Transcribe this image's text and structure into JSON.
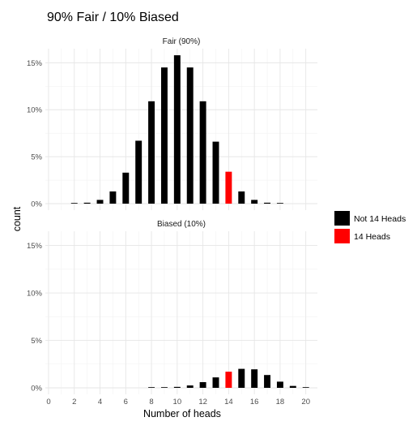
{
  "chart_data": {
    "type": "bar",
    "title": "90% Fair / 10% Biased",
    "xlabel": "Number of heads",
    "ylabel": "count",
    "x_ticks": [
      0,
      2,
      4,
      6,
      8,
      10,
      12,
      14,
      16,
      18,
      20
    ],
    "x_tick_labels": [
      "0",
      "2",
      "4",
      "6",
      "8",
      "10",
      "12",
      "14",
      "16",
      "18",
      "20"
    ],
    "xlim": [
      0,
      20
    ],
    "ylim": [
      0,
      16.5
    ],
    "y_ticks": [
      0,
      5,
      10,
      15
    ],
    "y_tick_labels": [
      "0%",
      "5%",
      "10%",
      "15%"
    ],
    "grid": true,
    "legend": {
      "position": "right",
      "entries": [
        {
          "label": "Not 14 Heads",
          "color": "#000000"
        },
        {
          "label": "14 Heads",
          "color": "#ff0000"
        }
      ]
    },
    "x": [
      0,
      1,
      2,
      3,
      4,
      5,
      6,
      7,
      8,
      9,
      10,
      11,
      12,
      13,
      14,
      15,
      16,
      17,
      18,
      19,
      20
    ],
    "highlight_x": 14,
    "panels": [
      {
        "strip": "Fair (90%)",
        "values": [
          0,
          0,
          0.02,
          0.1,
          0.4,
          1.3,
          3.3,
          6.7,
          10.9,
          14.5,
          15.8,
          14.5,
          10.9,
          6.6,
          3.4,
          1.3,
          0.4,
          0.1,
          0.02,
          0,
          0
        ]
      },
      {
        "strip": "Biased (10%)",
        "values": [
          0,
          0,
          0,
          0,
          0,
          0,
          0,
          0,
          0.02,
          0.05,
          0.1,
          0.25,
          0.6,
          1.1,
          1.7,
          2.0,
          1.95,
          1.35,
          0.65,
          0.2,
          0.05
        ]
      }
    ]
  }
}
